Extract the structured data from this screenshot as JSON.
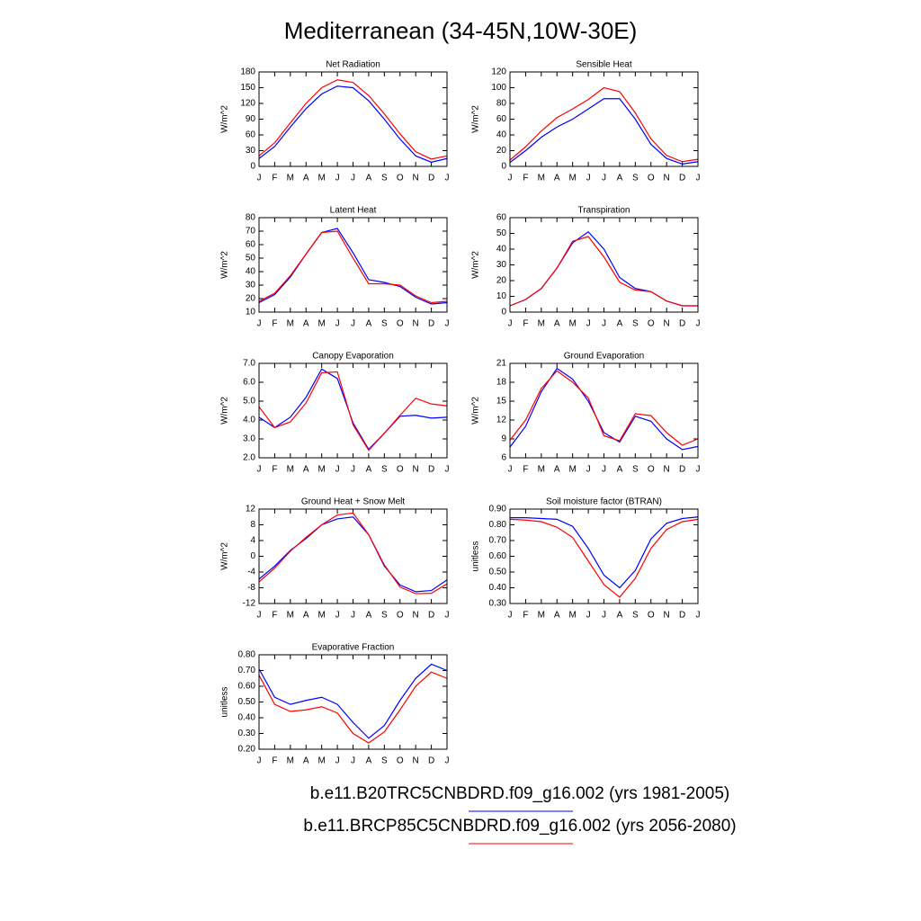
{
  "title": "Mediterranean (34-45N,10W-30E)",
  "legend": [
    {
      "name": "b.e11.B20TRC5CNBDRD.f09_g16.002 (yrs 1981-2005)",
      "color": "#0000ff"
    },
    {
      "name": "b.e11.BRCP85C5CNBDRD.f09_g16.002 (yrs 2056-2080)",
      "color": "#ff0000"
    }
  ],
  "chart_data": [
    {
      "type": "line",
      "title": "Net Radiation",
      "y_label": "W/m^2",
      "categories": [
        "J",
        "F",
        "M",
        "A",
        "M",
        "J",
        "J",
        "A",
        "S",
        "O",
        "N",
        "D",
        "J"
      ],
      "ylim": [
        0,
        180
      ],
      "yticks": [
        0,
        30,
        60,
        90,
        120,
        150,
        180
      ],
      "series": [
        {
          "color": "#0000ff",
          "values": [
            15,
            38,
            75,
            110,
            138,
            153,
            150,
            125,
            90,
            52,
            20,
            8,
            15
          ]
        },
        {
          "color": "#ff0000",
          "values": [
            20,
            45,
            83,
            120,
            150,
            165,
            160,
            135,
            100,
            62,
            28,
            14,
            20
          ]
        }
      ]
    },
    {
      "type": "line",
      "title": "Sensible Heat",
      "y_label": "W/m^2",
      "categories": [
        "J",
        "F",
        "M",
        "A",
        "M",
        "J",
        "J",
        "A",
        "S",
        "O",
        "N",
        "D",
        "J"
      ],
      "ylim": [
        0,
        120
      ],
      "yticks": [
        0,
        20,
        40,
        60,
        80,
        100,
        120
      ],
      "series": [
        {
          "color": "#0000ff",
          "values": [
            5,
            20,
            37,
            50,
            60,
            73,
            86,
            86,
            60,
            28,
            10,
            3,
            6
          ]
        },
        {
          "color": "#ff0000",
          "values": [
            8,
            25,
            45,
            62,
            73,
            85,
            100,
            95,
            68,
            35,
            14,
            6,
            9
          ]
        }
      ]
    },
    {
      "type": "line",
      "title": "Latent Heat",
      "y_label": "W/m^2",
      "categories": [
        "J",
        "F",
        "M",
        "A",
        "M",
        "J",
        "J",
        "A",
        "S",
        "O",
        "N",
        "D",
        "J"
      ],
      "ylim": [
        10,
        80
      ],
      "yticks": [
        10,
        20,
        30,
        40,
        50,
        60,
        70,
        80
      ],
      "series": [
        {
          "color": "#0000ff",
          "values": [
            17,
            23,
            36,
            53,
            69,
            72,
            54,
            34,
            32,
            29,
            21,
            16,
            17
          ]
        },
        {
          "color": "#ff0000",
          "values": [
            18,
            24,
            37,
            53,
            69,
            70,
            50,
            31,
            31,
            30,
            22,
            17,
            18
          ]
        }
      ]
    },
    {
      "type": "line",
      "title": "Transpiration",
      "y_label": "W/m^2",
      "categories": [
        "J",
        "F",
        "M",
        "A",
        "M",
        "J",
        "J",
        "A",
        "S",
        "O",
        "N",
        "D",
        "J"
      ],
      "ylim": [
        0,
        60
      ],
      "yticks": [
        0,
        10,
        20,
        30,
        40,
        50,
        60
      ],
      "series": [
        {
          "color": "#0000ff",
          "values": [
            4,
            8,
            15,
            28,
            44,
            51,
            40,
            22,
            15,
            13,
            7,
            4,
            4
          ]
        },
        {
          "color": "#ff0000",
          "values": [
            4,
            8,
            15,
            28,
            45,
            48,
            35,
            19,
            14,
            13,
            7,
            4,
            4
          ]
        }
      ]
    },
    {
      "type": "line",
      "title": "Canopy Evaporation",
      "y_label": "W/m^2",
      "categories": [
        "J",
        "F",
        "M",
        "A",
        "M",
        "J",
        "J",
        "A",
        "S",
        "O",
        "N",
        "D",
        "J"
      ],
      "ylim": [
        2,
        7
      ],
      "yticks": [
        {
          "value": 2,
          "label": "2.0"
        },
        {
          "value": 3,
          "label": "3.0"
        },
        {
          "value": 4,
          "label": "4.0"
        },
        {
          "value": 5,
          "label": "5.0"
        },
        {
          "value": 6,
          "label": "6.0"
        },
        {
          "value": 7,
          "label": "7.0"
        }
      ],
      "series": [
        {
          "color": "#0000ff",
          "values": [
            4.15,
            3.6,
            4.15,
            5.2,
            6.7,
            6.2,
            3.85,
            2.45,
            3.3,
            4.2,
            4.25,
            4.1,
            4.15
          ]
        },
        {
          "color": "#ff0000",
          "values": [
            4.7,
            3.6,
            3.9,
            4.9,
            6.5,
            6.55,
            3.75,
            2.4,
            3.3,
            4.25,
            5.15,
            4.85,
            4.75
          ]
        }
      ]
    },
    {
      "type": "line",
      "title": "Ground Evaporation",
      "y_label": "W/m^2",
      "categories": [
        "J",
        "F",
        "M",
        "A",
        "M",
        "J",
        "J",
        "A",
        "S",
        "O",
        "N",
        "D",
        "J"
      ],
      "ylim": [
        6,
        21
      ],
      "yticks": [
        6,
        9,
        12,
        15,
        18,
        21
      ],
      "series": [
        {
          "color": "#0000ff",
          "values": [
            7.7,
            11,
            16.5,
            20.2,
            18.5,
            15,
            10,
            8.5,
            12.6,
            11.8,
            9,
            7.3,
            7.8
          ]
        },
        {
          "color": "#ff0000",
          "values": [
            8.8,
            12,
            17,
            19.8,
            18,
            15.5,
            9.5,
            8.7,
            13,
            12.7,
            10,
            8,
            9
          ]
        }
      ]
    },
    {
      "type": "line",
      "title": "Ground Heat + Snow Melt",
      "y_label": "W/m^2",
      "categories": [
        "J",
        "F",
        "M",
        "A",
        "M",
        "J",
        "J",
        "A",
        "S",
        "O",
        "N",
        "D",
        "J"
      ],
      "ylim": [
        -12,
        12
      ],
      "yticks": [
        -12,
        -8,
        -4,
        0,
        4,
        8,
        12
      ],
      "series": [
        {
          "color": "#0000ff",
          "values": [
            -5.8,
            -2.5,
            1.5,
            4.5,
            8,
            9.5,
            10,
            5.5,
            -2.5,
            -7.3,
            -9,
            -8.7,
            -6
          ]
        },
        {
          "color": "#ff0000",
          "values": [
            -6.5,
            -3,
            1.3,
            4.8,
            8,
            10.5,
            11,
            5.5,
            -2.2,
            -7.8,
            -9.5,
            -9.4,
            -7
          ]
        }
      ]
    },
    {
      "type": "line",
      "title": "Soil moisture factor (BTRAN)",
      "y_label": "unitless",
      "categories": [
        "J",
        "F",
        "M",
        "A",
        "M",
        "J",
        "J",
        "A",
        "S",
        "O",
        "N",
        "D",
        "J"
      ],
      "ylim": [
        0.3,
        0.9
      ],
      "yticks": [
        {
          "value": 0.3,
          "label": "0.30"
        },
        {
          "value": 0.4,
          "label": "0.40"
        },
        {
          "value": 0.5,
          "label": "0.50"
        },
        {
          "value": 0.6,
          "label": "0.60"
        },
        {
          "value": 0.7,
          "label": "0.70"
        },
        {
          "value": 0.8,
          "label": "0.80"
        },
        {
          "value": 0.9,
          "label": "0.90"
        }
      ],
      "series": [
        {
          "color": "#0000ff",
          "values": [
            0.845,
            0.845,
            0.84,
            0.835,
            0.79,
            0.65,
            0.48,
            0.4,
            0.51,
            0.71,
            0.81,
            0.84,
            0.85
          ]
        },
        {
          "color": "#ff0000",
          "values": [
            0.835,
            0.83,
            0.82,
            0.785,
            0.72,
            0.57,
            0.42,
            0.34,
            0.46,
            0.65,
            0.77,
            0.82,
            0.835
          ]
        }
      ]
    },
    {
      "type": "line",
      "title": "Evaporative Fraction",
      "y_label": "unitless",
      "categories": [
        "J",
        "F",
        "M",
        "A",
        "M",
        "J",
        "J",
        "A",
        "S",
        "O",
        "N",
        "D",
        "J"
      ],
      "ylim": [
        0.2,
        0.8
      ],
      "yticks": [
        {
          "value": 0.2,
          "label": "0.20"
        },
        {
          "value": 0.3,
          "label": "0.30"
        },
        {
          "value": 0.4,
          "label": "0.40"
        },
        {
          "value": 0.5,
          "label": "0.50"
        },
        {
          "value": 0.6,
          "label": "0.60"
        },
        {
          "value": 0.7,
          "label": "0.70"
        },
        {
          "value": 0.8,
          "label": "0.80"
        }
      ],
      "series": [
        {
          "color": "#0000ff",
          "values": [
            0.71,
            0.53,
            0.485,
            0.51,
            0.53,
            0.485,
            0.37,
            0.27,
            0.35,
            0.51,
            0.65,
            0.74,
            0.7
          ]
        },
        {
          "color": "#ff0000",
          "values": [
            0.67,
            0.485,
            0.44,
            0.45,
            0.47,
            0.43,
            0.3,
            0.24,
            0.31,
            0.45,
            0.6,
            0.69,
            0.65
          ]
        }
      ]
    }
  ]
}
